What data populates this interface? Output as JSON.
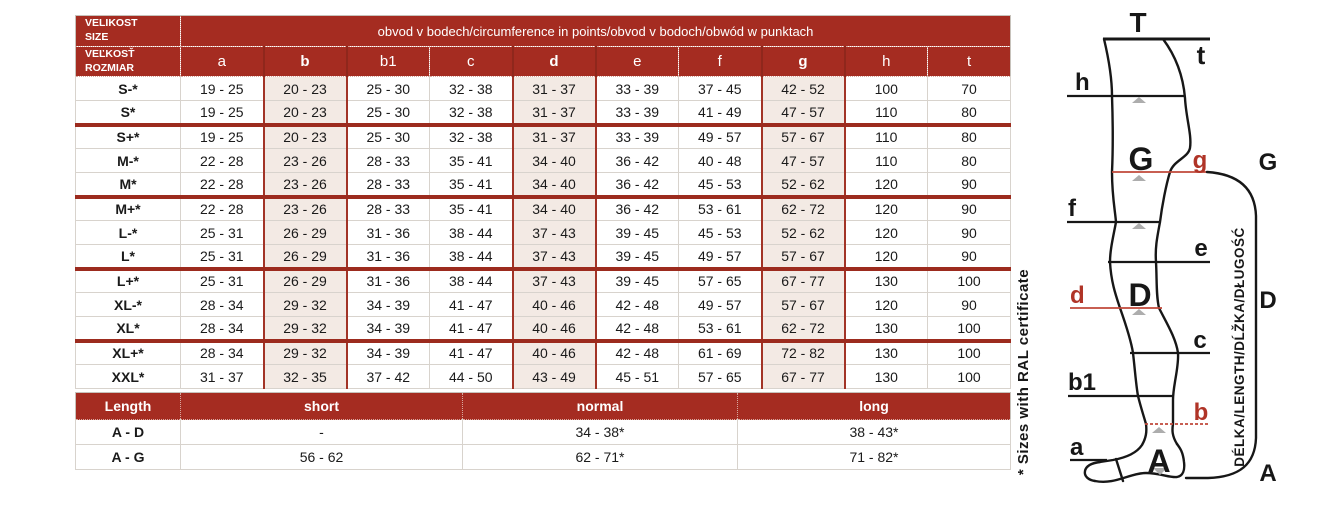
{
  "colors": {
    "header_red": "#a52c21",
    "separator_red": "#9c2b1e",
    "highlight_bg": "#f3eae4",
    "red_line": "#c0483a",
    "red_label": "#b03427"
  },
  "size_table": {
    "corner_line1": "VELIKOST",
    "corner_line2": "SIZE",
    "corner2_line1": "VEĽKOSŤ",
    "corner2_line2": "ROZMIAR",
    "span_header": "obvod v bodech/circumference in points/obvod v bodoch/obwód w punktach",
    "columns": [
      "a",
      "b",
      "b1",
      "c",
      "d",
      "e",
      "f",
      "g",
      "h",
      "t"
    ],
    "highlight_indices": [
      1,
      4,
      7
    ],
    "rows": [
      {
        "size": "S-*",
        "values": [
          "19 - 25",
          "20 - 23",
          "25 - 30",
          "32 - 38",
          "31 - 37",
          "33 - 39",
          "37 - 45",
          "42 - 52",
          "100",
          "70"
        ]
      },
      {
        "size": "S*",
        "values": [
          "19 - 25",
          "20 - 23",
          "25 - 30",
          "32 - 38",
          "31 - 37",
          "33 - 39",
          "41 - 49",
          "47 - 57",
          "110",
          "80"
        ],
        "group_end": true
      },
      {
        "size": "S+*",
        "values": [
          "19 - 25",
          "20 - 23",
          "25 - 30",
          "32 - 38",
          "31 - 37",
          "33 - 39",
          "49 - 57",
          "57 - 67",
          "110",
          "80"
        ]
      },
      {
        "size": "M-*",
        "values": [
          "22 - 28",
          "23 - 26",
          "28 - 33",
          "35 - 41",
          "34 - 40",
          "36 - 42",
          "40 - 48",
          "47 - 57",
          "110",
          "80"
        ]
      },
      {
        "size": "M*",
        "values": [
          "22 - 28",
          "23 - 26",
          "28 - 33",
          "35 - 41",
          "34 - 40",
          "36 - 42",
          "45 - 53",
          "52 - 62",
          "120",
          "90"
        ],
        "group_end": true
      },
      {
        "size": "M+*",
        "values": [
          "22 - 28",
          "23 - 26",
          "28 - 33",
          "35 - 41",
          "34 - 40",
          "36 - 42",
          "53 - 61",
          "62 - 72",
          "120",
          "90"
        ]
      },
      {
        "size": "L-*",
        "values": [
          "25 - 31",
          "26 - 29",
          "31 - 36",
          "38 - 44",
          "37 - 43",
          "39 - 45",
          "45 - 53",
          "52 - 62",
          "120",
          "90"
        ]
      },
      {
        "size": "L*",
        "values": [
          "25 - 31",
          "26 - 29",
          "31 - 36",
          "38 - 44",
          "37 - 43",
          "39 - 45",
          "49 - 57",
          "57 - 67",
          "120",
          "90"
        ],
        "group_end": true
      },
      {
        "size": "L+*",
        "values": [
          "25 - 31",
          "26 - 29",
          "31 - 36",
          "38 - 44",
          "37 - 43",
          "39 - 45",
          "57 - 65",
          "67 - 77",
          "130",
          "100"
        ]
      },
      {
        "size": "XL-*",
        "values": [
          "28 - 34",
          "29 - 32",
          "34 - 39",
          "41 - 47",
          "40 - 46",
          "42 - 48",
          "49 - 57",
          "57 - 67",
          "120",
          "90"
        ]
      },
      {
        "size": "XL*",
        "values": [
          "28 - 34",
          "29 - 32",
          "34 - 39",
          "41 - 47",
          "40 - 46",
          "42 - 48",
          "53 - 61",
          "62 - 72",
          "130",
          "100"
        ],
        "group_end": true
      },
      {
        "size": "XL+*",
        "values": [
          "28 - 34",
          "29 - 32",
          "34 - 39",
          "41 - 47",
          "40 - 46",
          "42 - 48",
          "61 - 69",
          "72 - 82",
          "130",
          "100"
        ]
      },
      {
        "size": "XXL*",
        "values": [
          "31 - 37",
          "32 - 35",
          "37 - 42",
          "44 - 50",
          "43 - 49",
          "45 - 51",
          "57 - 65",
          "67 - 77",
          "130",
          "100"
        ]
      }
    ]
  },
  "length_table": {
    "header": [
      "Length",
      "short",
      "normal",
      "long"
    ],
    "rows": [
      {
        "label": "A - D",
        "values": [
          "-",
          "34 - 38*",
          "38 - 43*"
        ]
      },
      {
        "label": "A - G",
        "values": [
          "56 - 62",
          "62 - 71*",
          "71 - 82*"
        ]
      }
    ]
  },
  "ral_note": "* Sizes with RAL certificate",
  "diagram": {
    "labels": {
      "T": "T",
      "t": "t",
      "h": "h",
      "G_big": "G",
      "g": "g",
      "G_right": "G",
      "f": "f",
      "e": "e",
      "d": "d",
      "D_big": "D",
      "c": "c",
      "b1": "b1",
      "b": "b",
      "a": "a",
      "A_big": "A",
      "D_right": "D",
      "A_right": "A"
    },
    "length_axis_label": "DÉLKA/LENGTH/DĹŽKA/DŁUGOŚĆ"
  }
}
